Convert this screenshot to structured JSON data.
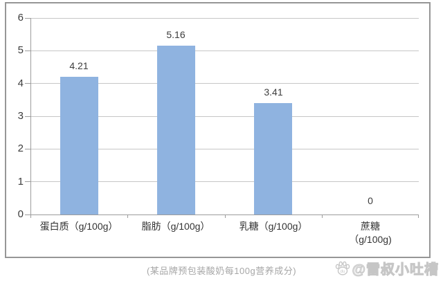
{
  "chart_data": {
    "type": "bar",
    "title": "",
    "categories": [
      "蛋白质（g/100g）",
      "脂肪（g/100g）",
      "乳糖（g/100g）",
      "蔗糖\n（g/100g)"
    ],
    "values": [
      4.21,
      5.16,
      3.41,
      0
    ],
    "value_labels": [
      "4.21",
      "5.16",
      "3.41",
      "0"
    ],
    "xlabel": "",
    "ylabel": "",
    "ylim": [
      0,
      6
    ],
    "yticks": [
      0,
      1,
      2,
      3,
      4,
      5,
      6
    ],
    "grid": true,
    "legend": "none",
    "bar_color": "#8fb3e0",
    "gridline_color": "#c6c6c6",
    "axis_color": "#9c9c9c"
  },
  "caption": "(某品牌预包装酸奶每100g营养成分)",
  "watermark": {
    "icon": "baidu-paw-icon",
    "text": "@雷叔小吐槽"
  }
}
